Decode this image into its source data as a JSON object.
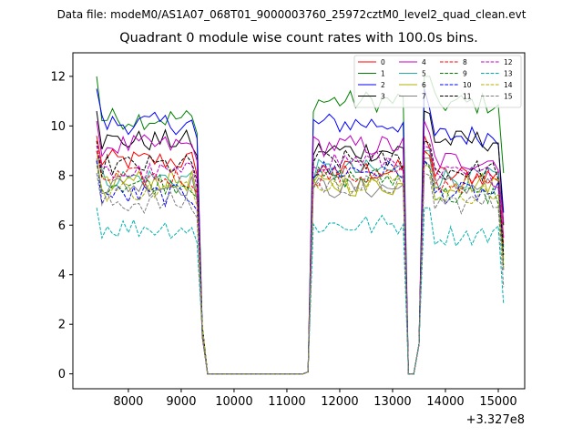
{
  "suptitle": "Data file: modeM0/AS1A07_068T01_9000003760_25972cztM0_level2_quad_clean.evt",
  "chart_data": {
    "type": "line",
    "title": "Quadrant 0 module wise count rates with 100.0s bins.",
    "xlabel": "",
    "ylabel": "",
    "x_offset_label": "+3.327e8",
    "xlim": [
      6950,
      15500
    ],
    "ylim": [
      -0.6,
      12.95
    ],
    "xticks": [
      8000,
      9000,
      10000,
      11000,
      12000,
      13000,
      14000,
      15000
    ],
    "yticks": [
      0,
      2,
      4,
      6,
      8,
      10,
      12
    ],
    "segments": [
      {
        "x_start": 7400,
        "x_end": 9300,
        "step": 100
      },
      {
        "x_start": 11500,
        "x_end": 13200,
        "step": 100
      },
      {
        "x_start": 13600,
        "x_end": 15100,
        "step": 100
      }
    ],
    "gap_points": [
      9400,
      9500,
      11400,
      13300,
      13400,
      13500
    ],
    "series": [
      {
        "name": "0",
        "color": "#ff0000",
        "dash": "solid",
        "levels": [
          8.6,
          8.2,
          8.0
        ],
        "peak": 9.6
      },
      {
        "name": "1",
        "color": "#008000",
        "dash": "solid",
        "levels": [
          10.3,
          11.0,
          10.9
        ],
        "peak": 12.0
      },
      {
        "name": "2",
        "color": "#0000ff",
        "dash": "solid",
        "levels": [
          10.1,
          10.1,
          9.6
        ],
        "peak": 11.5
      },
      {
        "name": "3",
        "color": "#000000",
        "dash": "solid",
        "levels": [
          9.4,
          9.0,
          9.4
        ],
        "peak": 10.6
      },
      {
        "name": "4",
        "color": "#c000c0",
        "dash": "solid",
        "levels": [
          9.2,
          9.2,
          8.6
        ],
        "peak": 10.2
      },
      {
        "name": "5",
        "color": "#20b0a0",
        "dash": "solid",
        "levels": [
          7.9,
          8.2,
          7.9
        ],
        "peak": 9.0
      },
      {
        "name": "6",
        "color": "#b0b000",
        "dash": "solid",
        "levels": [
          7.8,
          7.6,
          7.7
        ],
        "peak": 9.0
      },
      {
        "name": "7",
        "color": "#808080",
        "dash": "solid",
        "levels": [
          7.6,
          7.5,
          7.6
        ],
        "peak": 8.7
      },
      {
        "name": "8",
        "color": "#ff0000",
        "dash": "dashed",
        "levels": [
          7.9,
          8.0,
          7.7
        ],
        "peak": 9.0
      },
      {
        "name": "9",
        "color": "#008000",
        "dash": "dashed",
        "levels": [
          7.7,
          7.9,
          7.2
        ],
        "peak": 8.6
      },
      {
        "name": "10",
        "color": "#0000ff",
        "dash": "dashed",
        "levels": [
          7.2,
          8.2,
          7.3
        ],
        "peak": 8.6
      },
      {
        "name": "11",
        "color": "#000000",
        "dash": "dashed",
        "levels": [
          8.4,
          8.6,
          8.2
        ],
        "peak": 9.4
      },
      {
        "name": "12",
        "color": "#c000c0",
        "dash": "dashed",
        "levels": [
          8.1,
          8.6,
          8.0
        ],
        "peak": 9.2
      },
      {
        "name": "13",
        "color": "#00b0b0",
        "dash": "dashed",
        "levels": [
          5.9,
          6.0,
          5.6
        ],
        "peak": 6.7
      },
      {
        "name": "14",
        "color": "#b0b000",
        "dash": "dashed",
        "levels": [
          7.4,
          7.8,
          7.3
        ],
        "peak": 8.4
      },
      {
        "name": "15",
        "color": "#808080",
        "dash": "dashed",
        "levels": [
          6.9,
          7.6,
          6.9
        ],
        "peak": 8.1
      }
    ]
  }
}
